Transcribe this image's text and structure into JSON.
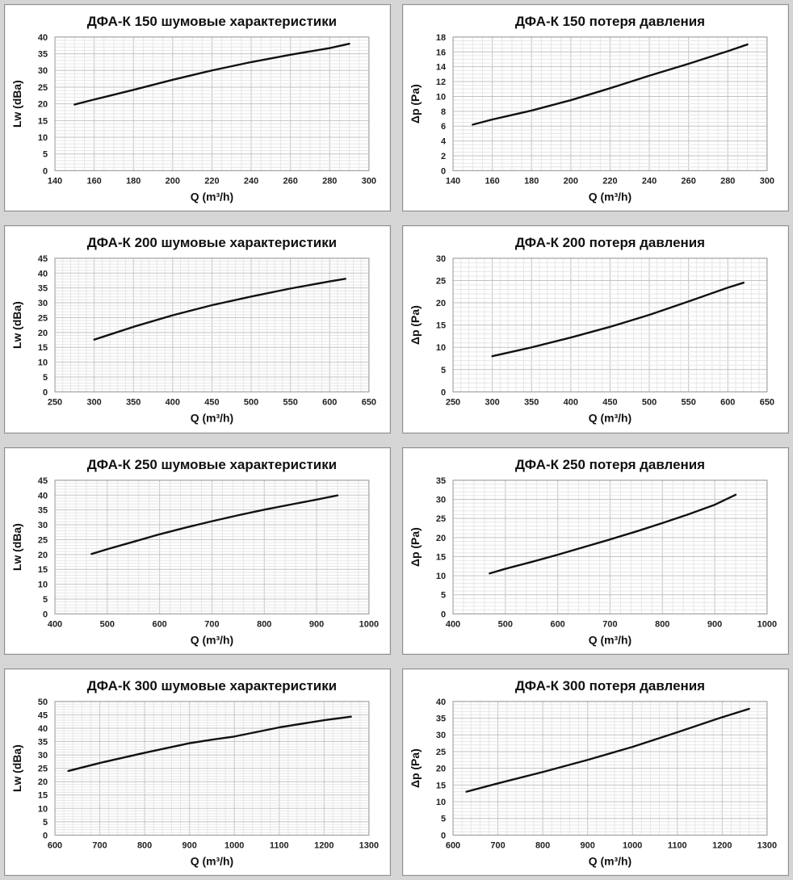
{
  "page": {
    "background_color": "#d5d5d5",
    "panel_color": "#ffffff",
    "panel_border_color": "#8f8f8f",
    "curve_color": "#111111",
    "grid_minor_color": "#e6e6e6",
    "grid_major_color": "#c2c2c2"
  },
  "chart_data": [
    {
      "type": "line",
      "title": "ДФА-К 150 шумовые характеристики",
      "xlabel": "Q (m³/h)",
      "ylabel": "Lw (dBa)",
      "xlim": [
        140,
        300
      ],
      "xstep": 20,
      "xminor": 5,
      "ylim": [
        0,
        40
      ],
      "ystep": 5,
      "yminor": 1,
      "grid": true,
      "legend": "none",
      "series": [
        {
          "name": "Lw",
          "x": [
            150,
            160,
            180,
            200,
            220,
            240,
            260,
            280,
            290
          ],
          "y": [
            19.8,
            21.3,
            24.2,
            27.2,
            30.0,
            32.5,
            34.7,
            36.7,
            38.0
          ]
        }
      ]
    },
    {
      "type": "line",
      "title": "ДФА-К 150 потеря давления",
      "xlabel": "Q (m³/h)",
      "ylabel": "Δp (Pa)",
      "xlim": [
        140,
        300
      ],
      "xstep": 20,
      "xminor": 5,
      "ylim": [
        0,
        18
      ],
      "ystep": 2,
      "yminor": 0.5,
      "grid": true,
      "legend": "none",
      "series": [
        {
          "name": "Δp",
          "x": [
            150,
            160,
            180,
            200,
            220,
            240,
            260,
            280,
            290
          ],
          "y": [
            6.2,
            6.9,
            8.1,
            9.5,
            11.1,
            12.8,
            14.4,
            16.1,
            17.0
          ]
        }
      ]
    },
    {
      "type": "line",
      "title": "ДФА-К 200 шумовые характеристики",
      "xlabel": "Q (m³/h)",
      "ylabel": "Lw (dBa)",
      "xlim": [
        250,
        650
      ],
      "xstep": 50,
      "xminor": 10,
      "ylim": [
        0,
        45
      ],
      "ystep": 5,
      "yminor": 1,
      "grid": true,
      "legend": "none",
      "series": [
        {
          "name": "Lw",
          "x": [
            300,
            350,
            400,
            450,
            500,
            550,
            600,
            620
          ],
          "y": [
            17.6,
            21.9,
            25.8,
            29.2,
            32.1,
            34.8,
            37.2,
            38.1
          ]
        }
      ]
    },
    {
      "type": "line",
      "title": "ДФА-К 200 потеря давления",
      "xlabel": "Q (m³/h)",
      "ylabel": "Δp (Pa)",
      "xlim": [
        250,
        650
      ],
      "xstep": 50,
      "xminor": 10,
      "ylim": [
        0,
        30
      ],
      "ystep": 5,
      "yminor": 1,
      "grid": true,
      "legend": "none",
      "series": [
        {
          "name": "Δp",
          "x": [
            300,
            350,
            400,
            450,
            500,
            550,
            600,
            620
          ],
          "y": [
            8.0,
            10.0,
            12.2,
            14.6,
            17.3,
            20.3,
            23.4,
            24.5
          ]
        }
      ]
    },
    {
      "type": "line",
      "title": "ДФА-К 250 шумовые характеристики",
      "xlabel": "Q (m³/h)",
      "ylabel": "Lw (dBa)",
      "xlim": [
        400,
        1000
      ],
      "xstep": 100,
      "xminor": 20,
      "ylim": [
        0,
        45
      ],
      "ystep": 5,
      "yminor": 1,
      "grid": true,
      "legend": "none",
      "series": [
        {
          "name": "Lw",
          "x": [
            470,
            500,
            550,
            600,
            650,
            700,
            750,
            800,
            850,
            900,
            940
          ],
          "y": [
            20.2,
            21.8,
            24.3,
            26.8,
            29.1,
            31.2,
            33.2,
            35.1,
            36.8,
            38.5,
            39.9
          ]
        }
      ]
    },
    {
      "type": "line",
      "title": "ДФА-К 250 потеря давления",
      "xlabel": "Q (m³/h)",
      "ylabel": "Δp (Pa)",
      "xlim": [
        400,
        1000
      ],
      "xstep": 100,
      "xminor": 20,
      "ylim": [
        0,
        35
      ],
      "ystep": 5,
      "yminor": 1,
      "grid": true,
      "legend": "none",
      "series": [
        {
          "name": "Δp",
          "x": [
            470,
            500,
            550,
            600,
            650,
            700,
            750,
            800,
            850,
            900,
            940
          ],
          "y": [
            10.6,
            11.8,
            13.6,
            15.5,
            17.5,
            19.5,
            21.6,
            23.8,
            26.1,
            28.6,
            31.2
          ]
        }
      ]
    },
    {
      "type": "line",
      "title": "ДФА-К 300 шумовые характеристики",
      "xlabel": "Q (m³/h)",
      "ylabel": "Lw (dBa)",
      "xlim": [
        600,
        1300
      ],
      "xstep": 100,
      "xminor": 20,
      "ylim": [
        0,
        50
      ],
      "ystep": 5,
      "yminor": 1,
      "grid": true,
      "legend": "none",
      "series": [
        {
          "name": "Lw",
          "x": [
            630,
            700,
            800,
            900,
            950,
            1000,
            1100,
            1200,
            1260
          ],
          "y": [
            24.0,
            27.0,
            30.8,
            34.4,
            35.7,
            36.9,
            40.3,
            43.0,
            44.3
          ]
        }
      ]
    },
    {
      "type": "line",
      "title": "ДФА-К 300 потеря давления",
      "xlabel": "Q (m³/h)",
      "ylabel": "Δp (Pa)",
      "xlim": [
        600,
        1300
      ],
      "xstep": 100,
      "xminor": 20,
      "ylim": [
        0,
        40
      ],
      "ystep": 5,
      "yminor": 1,
      "grid": true,
      "legend": "none",
      "series": [
        {
          "name": "Δp",
          "x": [
            630,
            700,
            800,
            900,
            1000,
            1100,
            1200,
            1260
          ],
          "y": [
            13.0,
            15.5,
            18.9,
            22.5,
            26.4,
            30.8,
            35.3,
            37.8
          ]
        }
      ]
    }
  ]
}
